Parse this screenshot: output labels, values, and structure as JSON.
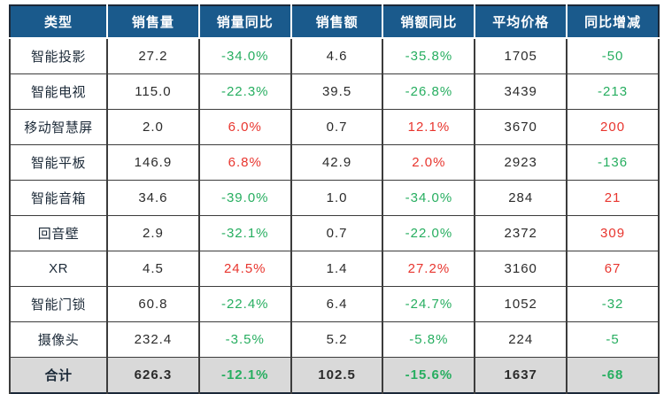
{
  "chart_data": {
    "type": "table",
    "columns": [
      "类型",
      "销售量",
      "销量同比",
      "销售额",
      "销额同比",
      "平均价格",
      "同比增减"
    ],
    "rows": [
      [
        "智能投影",
        "27.2",
        "-34.0%",
        "4.6",
        "-35.8%",
        "1705",
        "-50"
      ],
      [
        "智能电视",
        "115.0",
        "-22.3%",
        "39.5",
        "-26.8%",
        "3439",
        "-213"
      ],
      [
        "移动智慧屏",
        "2.0",
        "6.0%",
        "0.7",
        "12.1%",
        "3670",
        "200"
      ],
      [
        "智能平板",
        "146.9",
        "6.8%",
        "42.9",
        "2.0%",
        "2923",
        "-136"
      ],
      [
        "智能音箱",
        "34.6",
        "-39.0%",
        "1.0",
        "-34.0%",
        "284",
        "21"
      ],
      [
        "回音壁",
        "2.9",
        "-32.1%",
        "0.7",
        "-22.0%",
        "2372",
        "309"
      ],
      [
        "XR",
        "4.5",
        "24.5%",
        "1.4",
        "27.2%",
        "3160",
        "67"
      ],
      [
        "智能门锁",
        "60.8",
        "-22.4%",
        "6.4",
        "-24.7%",
        "1052",
        "-32"
      ],
      [
        "摄像头",
        "232.4",
        "-3.5%",
        "5.2",
        "-5.8%",
        "224",
        "-5"
      ]
    ],
    "total_row": [
      "合计",
      "626.3",
      "-12.1%",
      "102.5",
      "-15.6%",
      "1637",
      "-68"
    ],
    "colored_columns": [
      2,
      4,
      6
    ],
    "grid": "on",
    "legend": "none"
  },
  "colors": {
    "header_bg": "#1a5a8c",
    "header_text": "#ffffff",
    "total_bg": "#d9d9d9",
    "positive": "#e8352e",
    "negative": "#27ae60",
    "grid_line": "#3c3c3c",
    "outer_border": "#1b2838",
    "category_text": "#1c2a38",
    "value_text": "#2b2b2b"
  }
}
